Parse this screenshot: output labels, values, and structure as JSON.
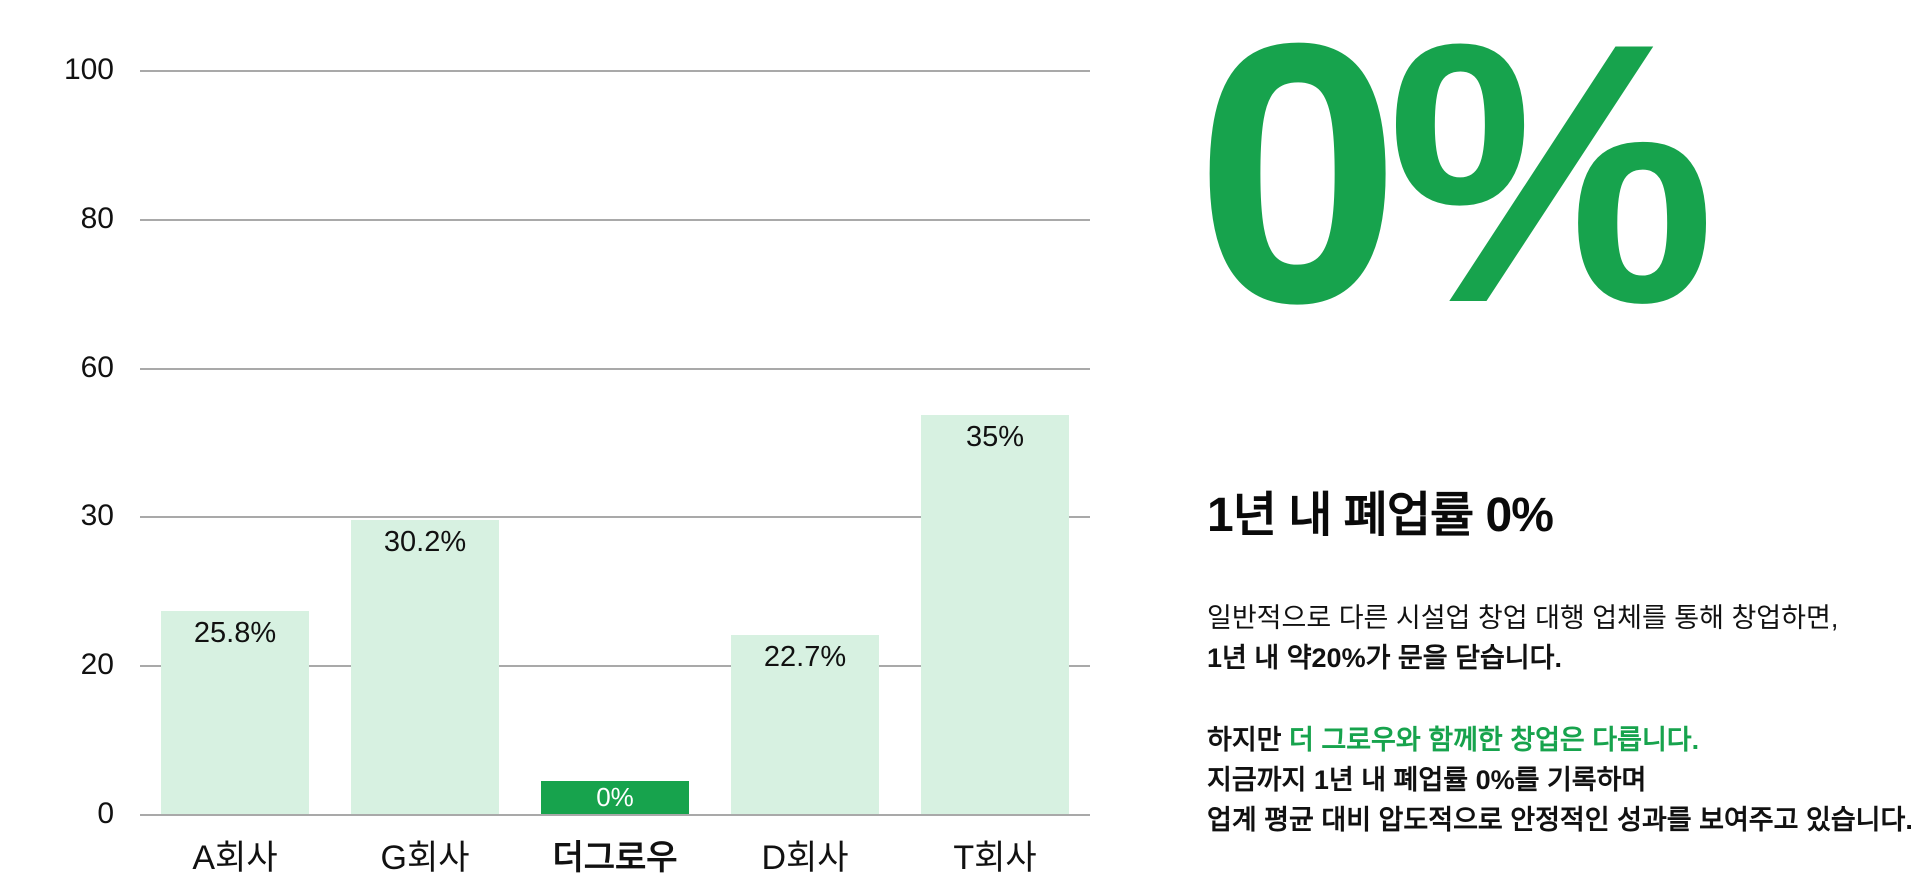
{
  "colors": {
    "green": "#17A34D",
    "mint": "#D7F1E1",
    "gridline": "#A9A9A9"
  },
  "chart_data": {
    "type": "bar",
    "categories": [
      "A회사",
      "G회사",
      "더그로우",
      "D회사",
      "T회사"
    ],
    "values": [
      25.8,
      30.2,
      0,
      22.7,
      35
    ],
    "value_labels": [
      "25.8%",
      "30.2%",
      "0%",
      "22.7%",
      "35%"
    ],
    "highlight_index": 2,
    "y_ticks": [
      "100",
      "80",
      "60",
      "30",
      "20",
      "0"
    ],
    "ylim": [
      0,
      100
    ],
    "grid": true,
    "legend": "none",
    "title": "",
    "xlabel": "",
    "ylabel": "",
    "display_heights_pct": [
      27.3,
      39.5,
      4.4,
      24.1,
      53.6
    ]
  },
  "right_panel": {
    "big_stat": "0%",
    "headline": "1년 내 폐업률 0%",
    "para1_line1": "일반적으로 다른 시설업 창업 대행 업체를 통해 창업하면,",
    "para1_line2": "1년 내 약20%가 문을 닫습니다.",
    "para2_prefix": "하지만 ",
    "para2_highlight": "더 그로우와 함께한 창업은 다릅니다.",
    "para2_line2": "지금까지 1년 내 폐업률 0%를 기록하며",
    "para2_line3": "업계 평균 대비 압도적으로 안정적인 성과를 보여주고 있습니다."
  }
}
